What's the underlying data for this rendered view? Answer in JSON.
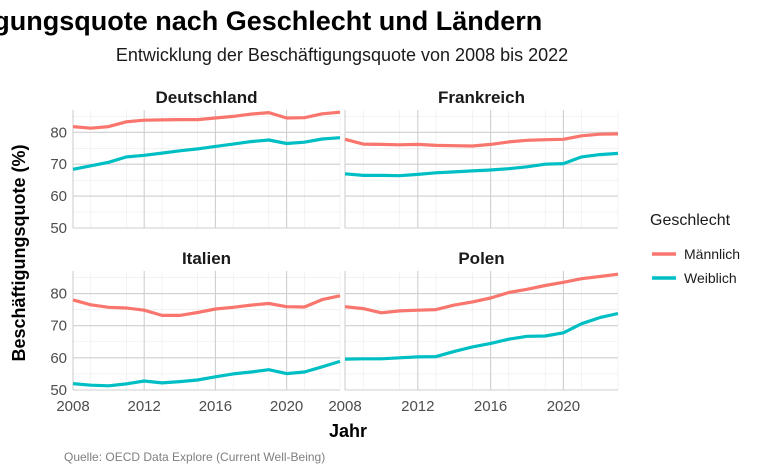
{
  "chart_data": {
    "type": "line",
    "title": "Beschäftigungsquote nach Geschlecht und Ländern",
    "subtitle": "Entwicklung der Beschäftigungsquote von 2008 bis 2022",
    "xlabel": "Jahr",
    "ylabel": "Beschäftigungsquote (%)",
    "caption": "Quelle: OECD Data Explore (Current Well-Being)",
    "xlim": [
      2008,
      2023
    ],
    "ylim": [
      50,
      87
    ],
    "x_ticks": [
      2008,
      2012,
      2016,
      2020
    ],
    "x_tick_labels": [
      "2008",
      "2012",
      "2016",
      "2020"
    ],
    "y_ticks": [
      50,
      60,
      70,
      80
    ],
    "y_tick_labels": [
      "50",
      "60",
      "70",
      "80"
    ],
    "grid": true,
    "legend": {
      "title": "Geschlecht",
      "position": "right",
      "entries": [
        "Männlich",
        "Weiblich"
      ]
    },
    "colors": {
      "Männlich": "#F8766D",
      "Weiblich": "#00BFC4"
    },
    "x": [
      2008,
      2009,
      2010,
      2011,
      2012,
      2013,
      2014,
      2015,
      2016,
      2017,
      2018,
      2019,
      2020,
      2021,
      2022,
      2023
    ],
    "facets": [
      {
        "name": "Deutschland",
        "series": [
          {
            "name": "Männlich",
            "values": [
              81.8,
              81.3,
              81.8,
              83.3,
              83.8,
              83.9,
              84.0,
              84.0,
              84.5,
              85.0,
              85.7,
              86.2,
              84.5,
              84.6,
              85.8,
              86.3
            ]
          },
          {
            "name": "Weiblich",
            "values": [
              68.4,
              69.5,
              70.6,
              72.3,
              72.8,
              73.5,
              74.2,
              74.8,
              75.6,
              76.3,
              77.1,
              77.6,
              76.5,
              76.9,
              77.9,
              78.3
            ]
          }
        ]
      },
      {
        "name": "Frankreich",
        "series": [
          {
            "name": "Männlich",
            "values": [
              77.8,
              76.3,
              76.2,
              76.1,
              76.2,
              75.9,
              75.8,
              75.7,
              76.2,
              77.0,
              77.5,
              77.7,
              77.8,
              78.9,
              79.4,
              79.5
            ]
          },
          {
            "name": "Weiblich",
            "values": [
              67.0,
              66.5,
              66.5,
              66.4,
              66.8,
              67.3,
              67.6,
              67.9,
              68.2,
              68.6,
              69.2,
              70.0,
              70.2,
              72.3,
              73.0,
              73.4
            ]
          }
        ]
      },
      {
        "name": "Italien",
        "series": [
          {
            "name": "Männlich",
            "values": [
              78.0,
              76.5,
              75.7,
              75.5,
              74.8,
              73.2,
              73.2,
              74.1,
              75.2,
              75.7,
              76.4,
              76.9,
              75.9,
              75.8,
              78.1,
              79.3
            ]
          },
          {
            "name": "Weiblich",
            "values": [
              52.0,
              51.5,
              51.3,
              51.9,
              52.8,
              52.2,
              52.6,
              53.1,
              54.1,
              55.0,
              55.6,
              56.3,
              55.1,
              55.6,
              57.2,
              58.9
            ]
          }
        ]
      },
      {
        "name": "Polen",
        "series": [
          {
            "name": "Männlich",
            "values": [
              75.9,
              75.3,
              74.0,
              74.6,
              74.8,
              75.0,
              76.4,
              77.4,
              78.6,
              80.3,
              81.3,
              82.5,
              83.5,
              84.6,
              85.3,
              86.0
            ]
          },
          {
            "name": "Weiblich",
            "values": [
              59.6,
              59.7,
              59.7,
              60.0,
              60.3,
              60.4,
              62.0,
              63.4,
              64.5,
              65.8,
              66.7,
              66.8,
              67.8,
              70.6,
              72.5,
              73.8
            ]
          }
        ]
      }
    ]
  }
}
